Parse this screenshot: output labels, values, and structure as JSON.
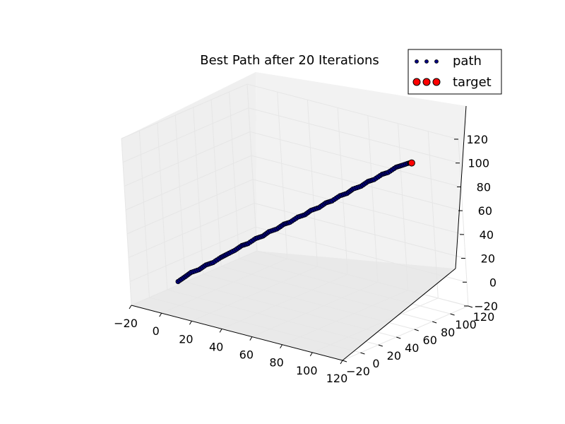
{
  "chart_data": {
    "type": "scatter",
    "projection": "3d",
    "title": "Best Path after 20 Iterations",
    "xlabel": "",
    "ylabel": "",
    "zlabel": "",
    "xlim": [
      -20,
      120
    ],
    "ylim": [
      -20,
      120
    ],
    "zlim": [
      -20,
      120
    ],
    "x_ticks": [
      -20,
      0,
      20,
      40,
      60,
      80,
      100,
      120
    ],
    "y_ticks": [
      -20,
      0,
      20,
      40,
      60,
      80,
      100,
      120
    ],
    "z_ticks": [
      -20,
      0,
      20,
      40,
      60,
      80,
      100,
      120
    ],
    "x_tick_labels": [
      "−20",
      "0",
      "20",
      "40",
      "60",
      "80",
      "100",
      "120"
    ],
    "y_tick_labels": [
      "−20",
      "0",
      "20",
      "40",
      "60",
      "80",
      "100",
      "120"
    ],
    "z_tick_labels": [
      "−20",
      "0",
      "20",
      "40",
      "60",
      "80",
      "100",
      "120"
    ],
    "grid": true,
    "legend_position": "top-right",
    "series": [
      {
        "name": "path",
        "color": "#000080",
        "marker": "circle",
        "points": [
          [
            0,
            0,
            0
          ],
          [
            3,
            3,
            4
          ],
          [
            6,
            5,
            8
          ],
          [
            9,
            9,
            10
          ],
          [
            12,
            12,
            14
          ],
          [
            15,
            15,
            16
          ],
          [
            18,
            19,
            20
          ],
          [
            21,
            21,
            23
          ],
          [
            24,
            25,
            26
          ],
          [
            27,
            28,
            30
          ],
          [
            30,
            30,
            32
          ],
          [
            33,
            34,
            36
          ],
          [
            36,
            37,
            38
          ],
          [
            39,
            39,
            42
          ],
          [
            42,
            43,
            44
          ],
          [
            45,
            46,
            48
          ],
          [
            48,
            48,
            50
          ],
          [
            51,
            52,
            54
          ],
          [
            54,
            55,
            56
          ],
          [
            57,
            57,
            60
          ],
          [
            60,
            61,
            62
          ],
          [
            63,
            64,
            66
          ],
          [
            66,
            66,
            68
          ],
          [
            69,
            70,
            72
          ],
          [
            72,
            73,
            74
          ],
          [
            75,
            75,
            78
          ],
          [
            78,
            79,
            80
          ],
          [
            81,
            82,
            84
          ],
          [
            84,
            84,
            86
          ],
          [
            87,
            88,
            90
          ],
          [
            90,
            90,
            92
          ],
          [
            93,
            94,
            96
          ],
          [
            96,
            96,
            98
          ],
          [
            99,
            99,
            100
          ],
          [
            100,
            100,
            100
          ]
        ]
      },
      {
        "name": "target",
        "color": "#ff0000",
        "marker": "circle",
        "points": [
          [
            100,
            100,
            100
          ]
        ]
      }
    ]
  }
}
